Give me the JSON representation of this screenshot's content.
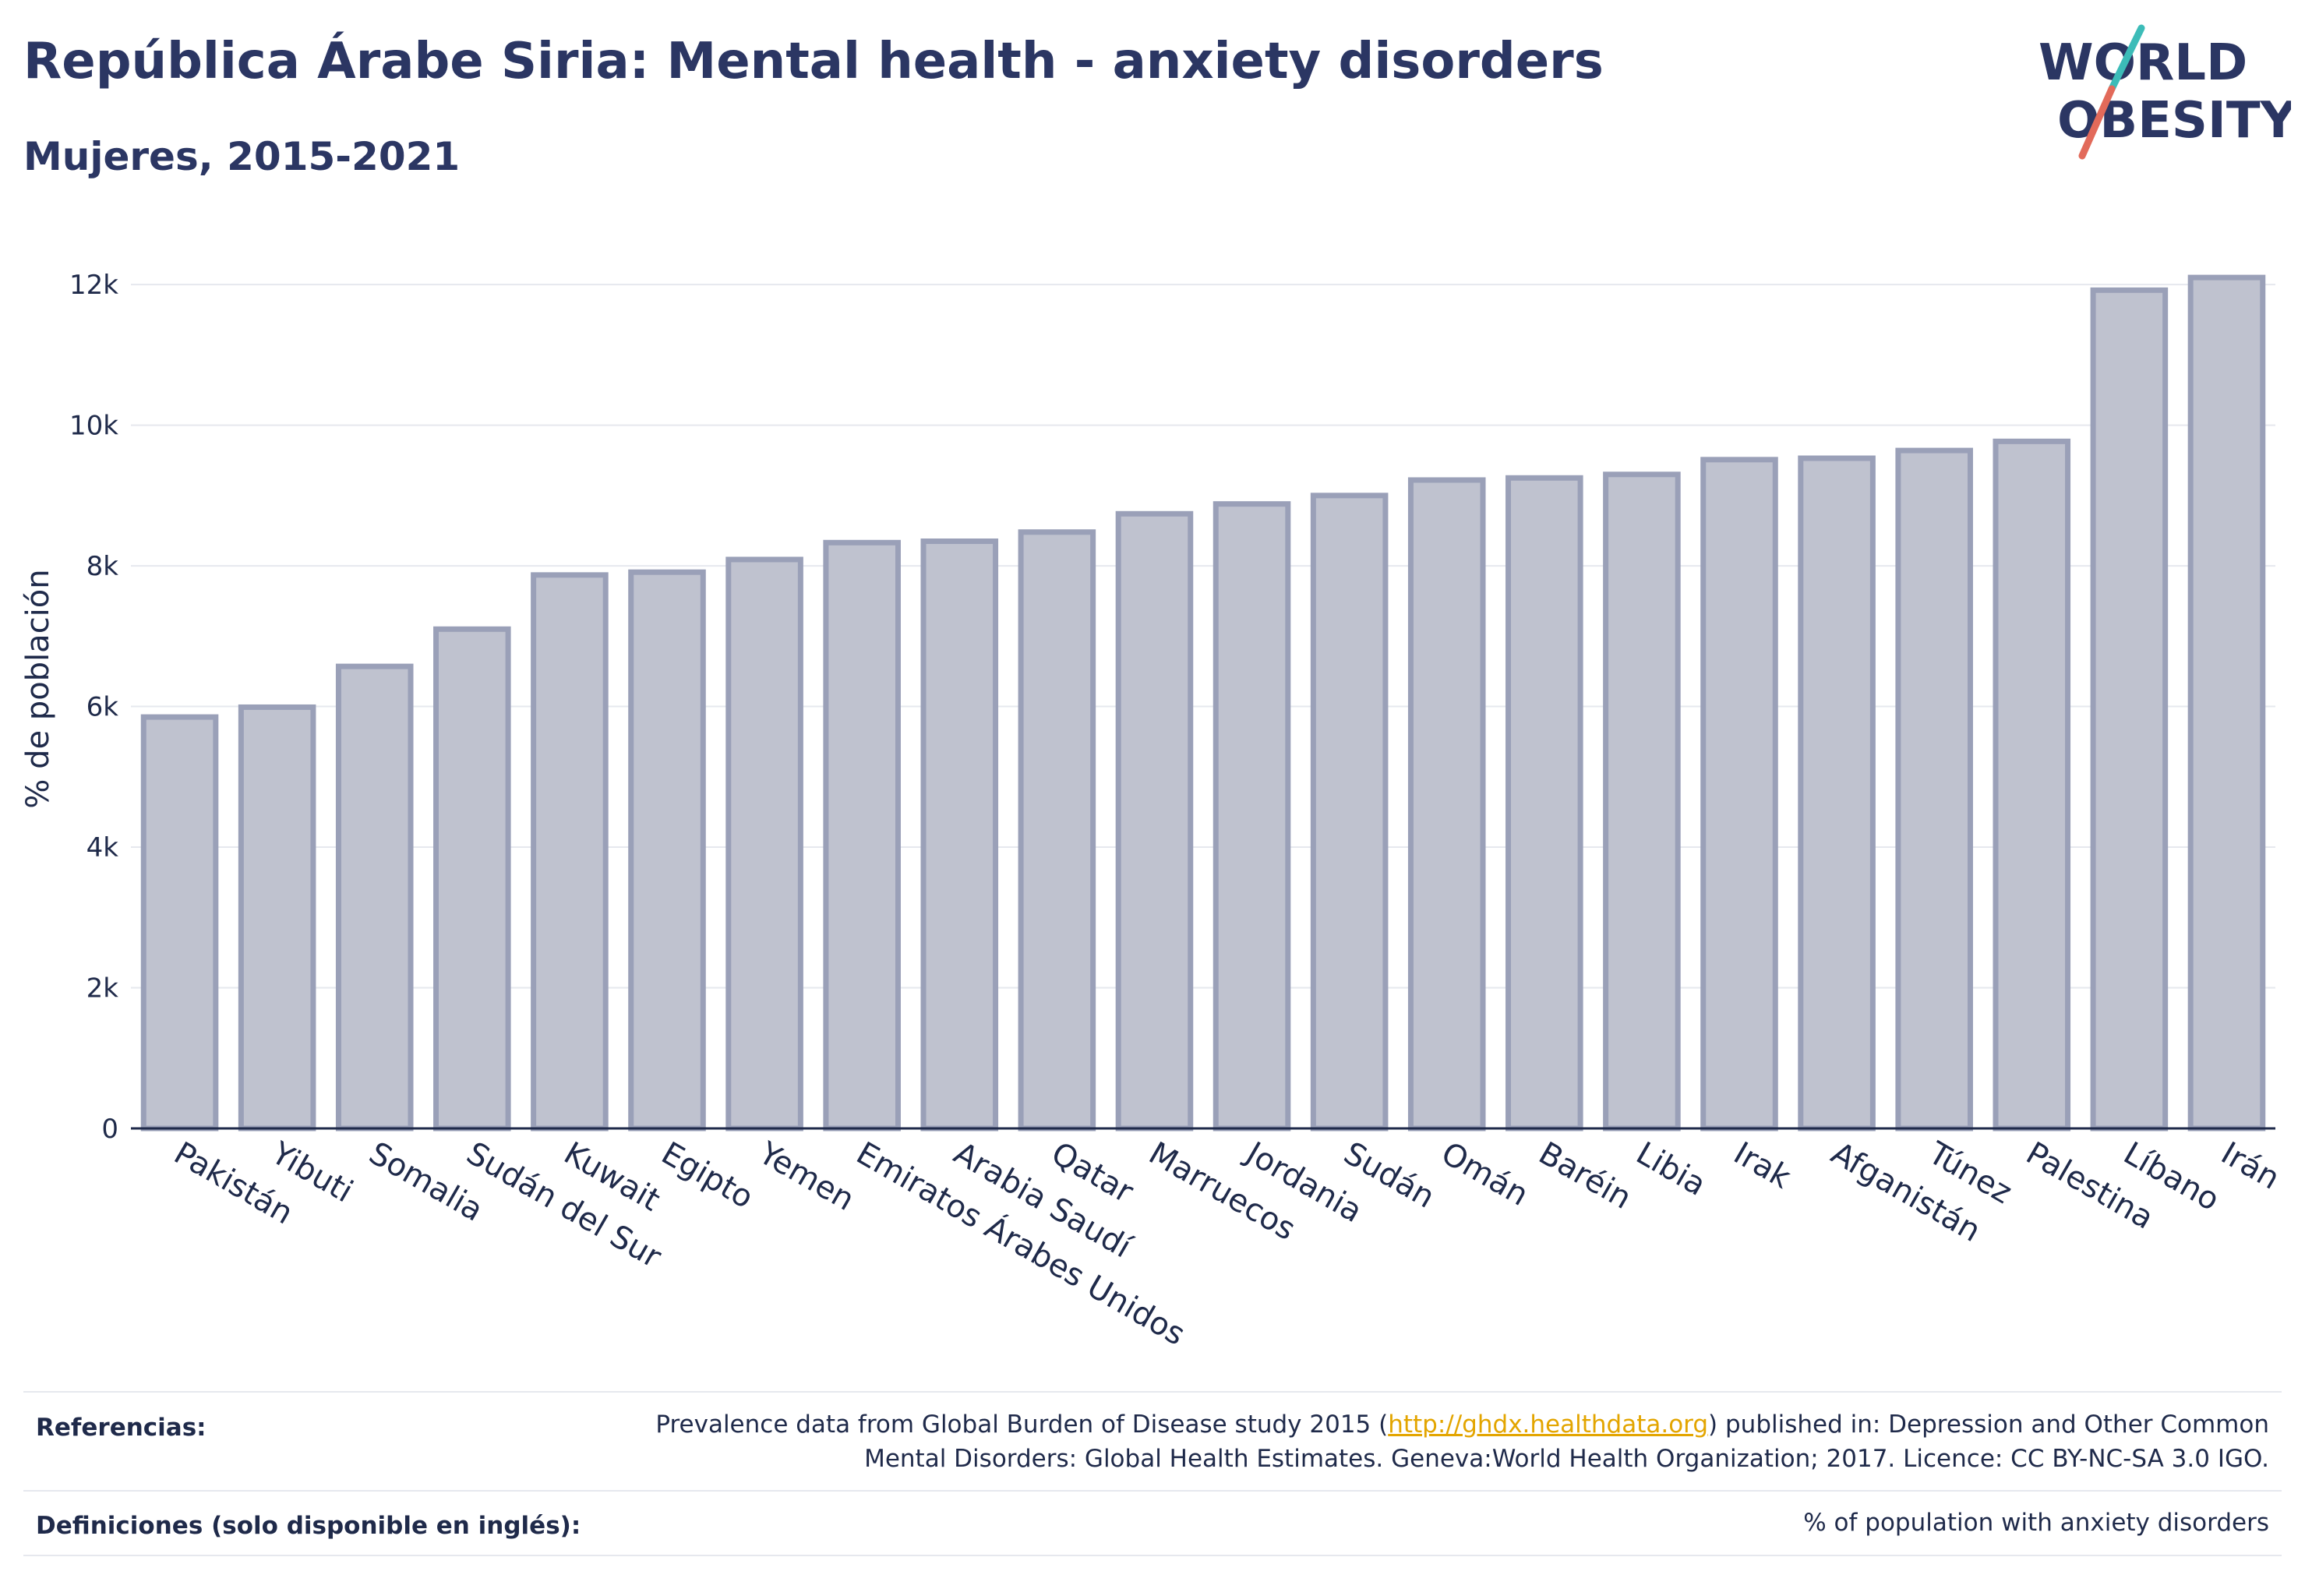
{
  "header": {
    "title": "República Árabe Siria: Mental health - anxiety disorders",
    "subtitle": "Mujeres, 2015-2021"
  },
  "logo": {
    "line1": "WORLD",
    "line2": "OBESITY",
    "text_color": "#2b3663",
    "slash_top_color": "#3cbcb8",
    "slash_bottom_color": "#e26a5a"
  },
  "chart_data": {
    "type": "bar",
    "title": "República Árabe Siria: Mental health - anxiety disorders",
    "subtitle": "Mujeres, 2015-2021",
    "ylabel": "% de población",
    "xlabel": "",
    "ylim": [
      0,
      12500
    ],
    "yticks": [
      0,
      2000,
      4000,
      6000,
      8000,
      10000,
      12000
    ],
    "ytick_labels": [
      "0",
      "2k",
      "4k",
      "6k",
      "8k",
      "10k",
      "12k"
    ],
    "grid": true,
    "bar_fill": "#bfc2cf",
    "bar_stroke": "#9aa0b8",
    "categories": [
      "Pakistán",
      "Yibuti",
      "Somalia",
      "Sudán del Sur",
      "Kuwait",
      "Egipto",
      "Yemen",
      "Emiratos Árabes Unidos",
      "Arabia Saudí",
      "Qatar",
      "Marruecos",
      "Jordania",
      "Sudán",
      "Omán",
      "Baréin",
      "Libia",
      "Irak",
      "Afganistán",
      "Túnez",
      "Palestina",
      "Líbano",
      "Irán"
    ],
    "values": [
      5850,
      5990,
      6570,
      7100,
      7870,
      7910,
      8090,
      8330,
      8350,
      8480,
      8740,
      8880,
      9000,
      9220,
      9250,
      9300,
      9510,
      9530,
      9640,
      9770,
      11920,
      12100
    ]
  },
  "footer": {
    "references_label": "Referencias:",
    "references_pre": "Prevalence data from Global Burden of Disease study 2015 (",
    "references_link": "http://ghdx.healthdata.org",
    "references_post": ") published in: Depression and Other Common",
    "references_line2": "Mental Disorders: Global Health Estimates. Geneva:World Health Organization; 2017. Licence: CC BY-NC-SA 3.0 IGO.",
    "definitions_label": "Definiciones (solo disponible en inglés):",
    "definitions_text": "% of population with anxiety disorders"
  }
}
